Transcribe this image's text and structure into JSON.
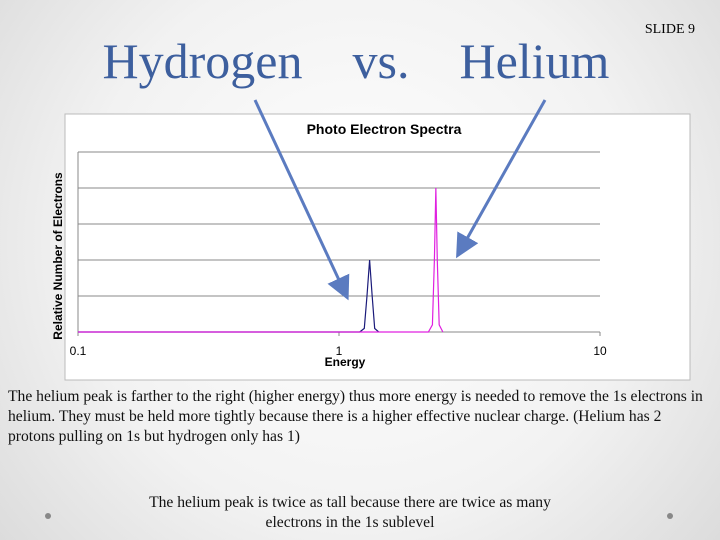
{
  "slide_number": "SLIDE 9",
  "title": "Hydrogen    vs.    Helium",
  "chart_data": {
    "type": "line",
    "title": "Photo Electron Spectra",
    "x_label": "Energy",
    "y_label": "Relative Number of Electrons",
    "xscale": "log",
    "xlim": [
      0.1,
      10
    ],
    "xticks": [
      0.1,
      1,
      10
    ],
    "ylim": [
      0,
      5
    ],
    "yticks": [
      0,
      1,
      2,
      3,
      4,
      5
    ],
    "grid": true,
    "x": [
      0.1,
      1.2,
      1.25,
      1.28,
      1.31,
      1.34,
      1.37,
      1.42,
      2.2,
      2.28,
      2.32,
      2.35,
      2.38,
      2.42,
      2.5
    ],
    "series": [
      {
        "name": "Hydrogen",
        "color": "#1a1a7a",
        "values": [
          0,
          0,
          0.1,
          1,
          2,
          1,
          0.1,
          0,
          null,
          null,
          null,
          null,
          null,
          null,
          null
        ]
      },
      {
        "name": "Helium",
        "color": "#e020e0",
        "values": [
          0,
          0,
          0,
          0,
          0,
          0,
          0,
          0,
          0,
          0.2,
          2,
          4,
          2,
          0.2,
          0
        ]
      }
    ]
  },
  "paragraphs": [
    "The helium peak is farther to the right (higher energy) thus more energy is needed to remove the 1s electrons in helium.  They must be held more tightly because there is a higher effective nuclear charge.  (Helium has 2 protons pulling on 1s but hydrogen only has 1)",
    "The helium peak is twice as tall because there are twice as many electrons in the 1s sublevel"
  ]
}
